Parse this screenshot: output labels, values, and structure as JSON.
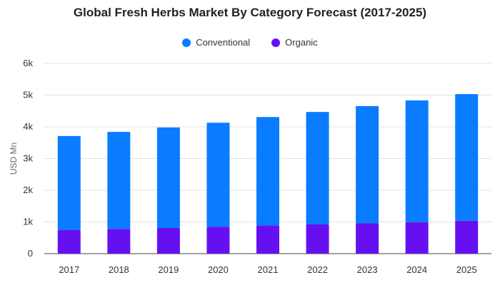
{
  "chart_data": {
    "type": "bar",
    "stacked": true,
    "title": "Global Fresh Herbs Market By Category Forecast (2017-2025)",
    "xlabel": "",
    "ylabel": "USD Mn",
    "categories": [
      "2017",
      "2018",
      "2019",
      "2020",
      "2021",
      "2022",
      "2023",
      "2024",
      "2025"
    ],
    "series": [
      {
        "name": "Organic",
        "color": "#6610f2",
        "values": [
          750,
          780,
          810,
          850,
          890,
          920,
          955,
          995,
          1040
        ]
      },
      {
        "name": "Conventional",
        "color": "#0a7cff",
        "values": [
          2960,
          3060,
          3170,
          3280,
          3420,
          3550,
          3700,
          3840,
          3990
        ]
      }
    ],
    "ylim": [
      0,
      6000
    ],
    "yticks": [
      0,
      1000,
      2000,
      3000,
      4000,
      5000,
      6000
    ],
    "ytick_labels": [
      "0",
      "1k",
      "2k",
      "3k",
      "4k",
      "5k",
      "6k"
    ],
    "grid": true,
    "legend_position": "top-center",
    "legend_order": [
      "Conventional",
      "Organic"
    ]
  }
}
